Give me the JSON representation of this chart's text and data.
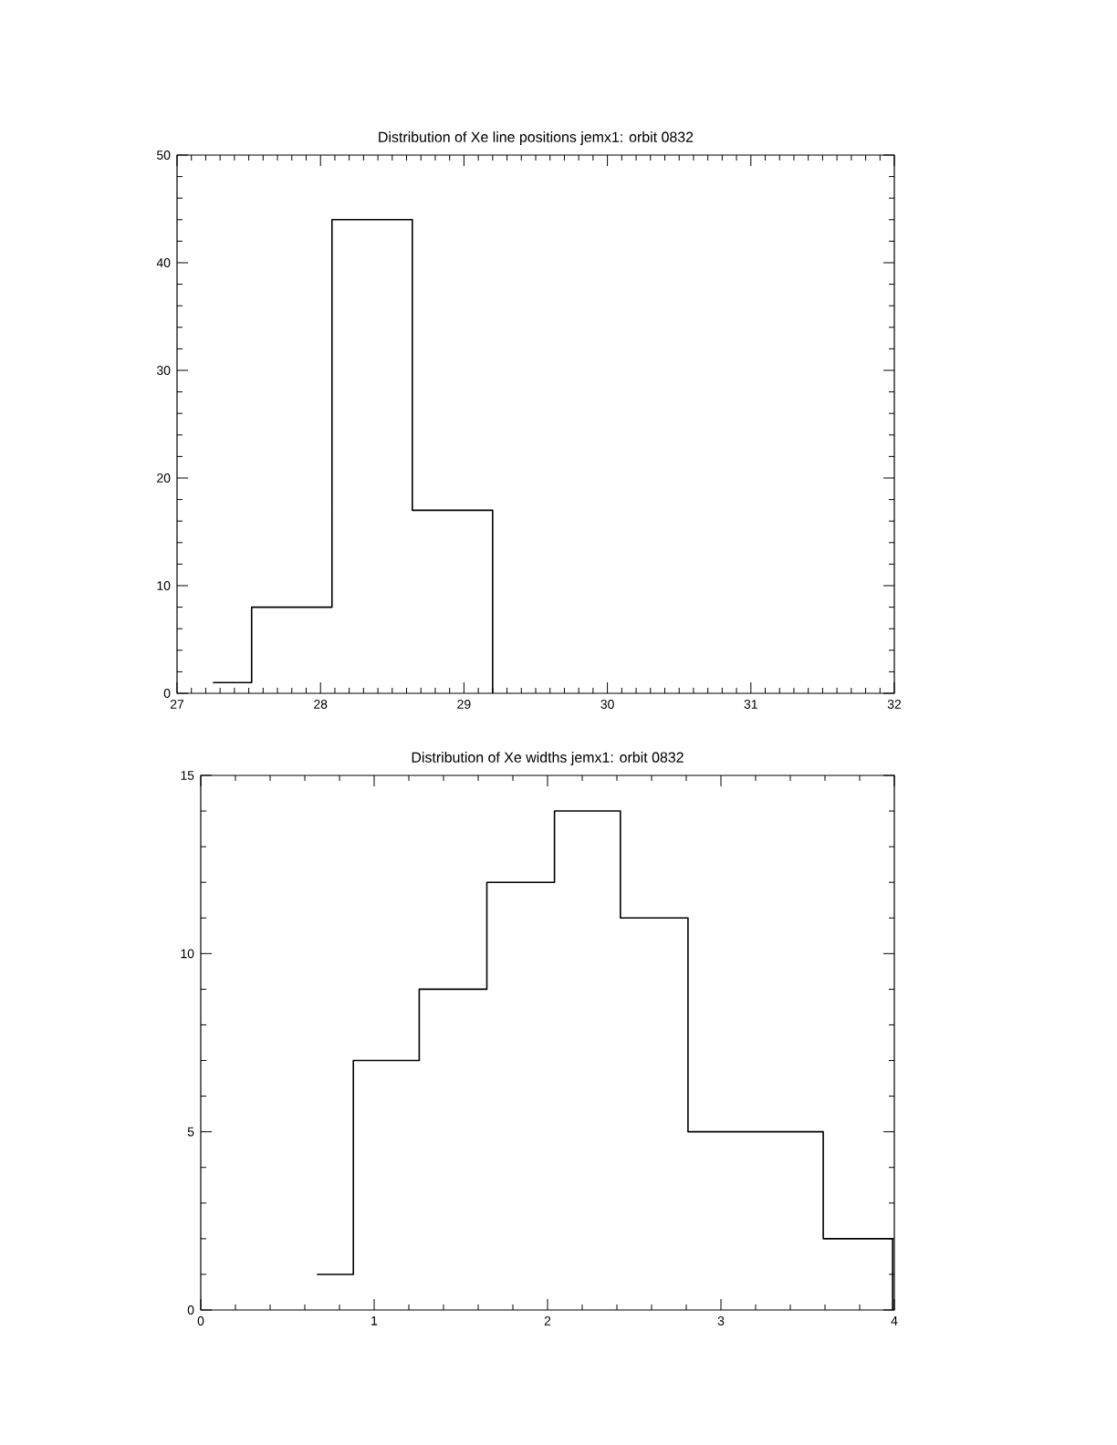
{
  "chart_data": [
    {
      "type": "histogram",
      "title": "Distribution of Xe line positions jemx1: orbit 0832",
      "bins": [
        27.25,
        27.52,
        28.08,
        28.64,
        29.2
      ],
      "values": [
        1,
        8,
        44,
        17
      ],
      "color": "#000000",
      "xlim": [
        27,
        32
      ],
      "ylim": [
        0,
        50
      ],
      "xticks": [
        27,
        28,
        29,
        30,
        31,
        32
      ],
      "yticks": [
        0,
        10,
        20,
        30,
        40,
        50
      ]
    },
    {
      "type": "histogram",
      "title": "Distribution of Xe widths jemx1: orbit 0832",
      "bins": [
        0.67,
        0.88,
        1.26,
        1.65,
        2.04,
        2.42,
        2.81,
        3.59,
        3.99
      ],
      "values": [
        1,
        7,
        9,
        12,
        14,
        11,
        5,
        2
      ],
      "color": "#000000",
      "xlim": [
        0,
        4
      ],
      "ylim": [
        0,
        15
      ],
      "xticks": [
        0,
        1,
        2,
        3,
        4
      ],
      "yticks": [
        0,
        5,
        10,
        15
      ]
    }
  ]
}
